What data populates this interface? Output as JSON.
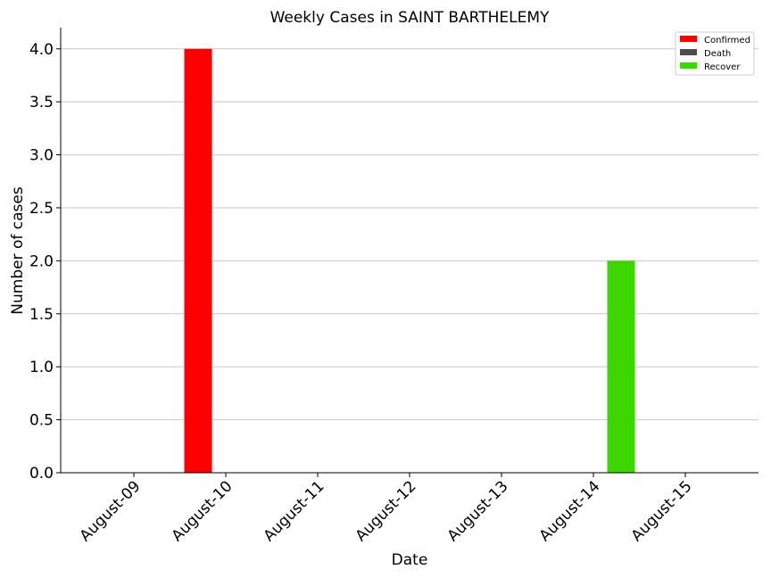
{
  "chart_data": {
    "type": "bar",
    "title": "Weekly Cases in SAINT BARTHELEMY",
    "xlabel": "Date",
    "ylabel": "Number of cases",
    "categories": [
      "August-09",
      "August-10",
      "August-11",
      "August-12",
      "August-13",
      "August-14",
      "August-15"
    ],
    "series": [
      {
        "name": "Confirmed",
        "color": "#ff0000",
        "values": [
          0,
          4,
          0,
          0,
          0,
          0,
          0
        ]
      },
      {
        "name": "Death",
        "color": "#4d4d4d",
        "values": [
          0,
          0,
          0,
          0,
          0,
          0,
          0
        ]
      },
      {
        "name": "Recover",
        "color": "#3cd600",
        "values": [
          0,
          0,
          0,
          0,
          0,
          2,
          0
        ]
      }
    ],
    "ylim": [
      0,
      4.2
    ],
    "yticks": [
      "0.0",
      "0.5",
      "1.0",
      "1.5",
      "2.0",
      "2.5",
      "3.0",
      "3.5",
      "4.0"
    ],
    "grid": "horizontal",
    "legend_position": "top-right"
  }
}
